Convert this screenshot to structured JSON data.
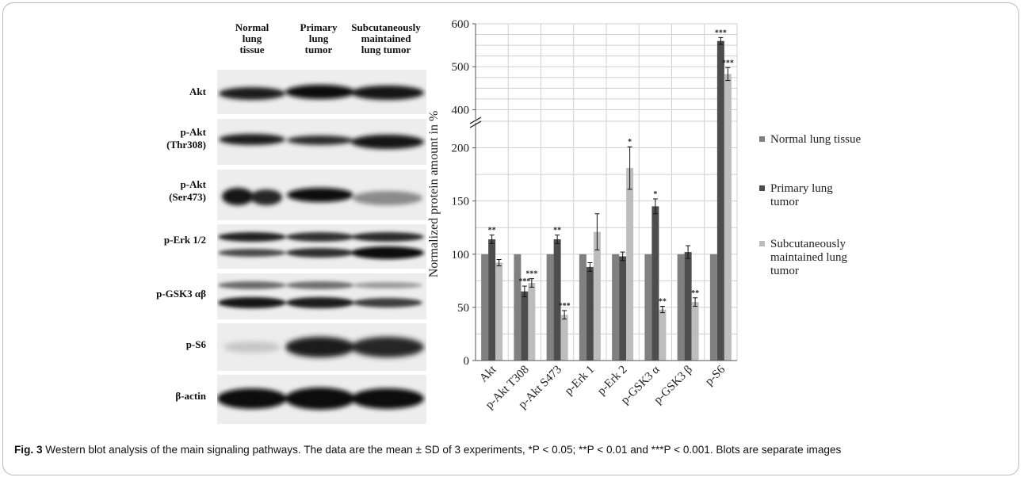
{
  "blot": {
    "columns": [
      "Normal lung tissue",
      "Primary lung tumor",
      "Subcutaneously maintained lung tumor"
    ],
    "column_lines": [
      [
        "Normal",
        "lung",
        "tissue"
      ],
      [
        "Primary",
        "lung",
        "tumor"
      ],
      [
        "Subcutaneously",
        "maintained",
        "lung tumor"
      ]
    ],
    "rows": [
      {
        "lines": [
          "Akt"
        ]
      },
      {
        "lines": [
          "p-Akt",
          "(Thr308)"
        ]
      },
      {
        "lines": [
          "p-Akt",
          "(Ser473)"
        ]
      },
      {
        "lines": [
          "p-Erk 1/2"
        ]
      },
      {
        "lines": [
          "p-GSK3 αβ"
        ]
      },
      {
        "lines": [
          "p-S6"
        ]
      },
      {
        "lines": [
          "β-actin"
        ]
      }
    ]
  },
  "chart_data": {
    "type": "bar",
    "ylabel": "Normalized protein amount in %",
    "categories": [
      "Akt",
      "p-Akt T308",
      "p-Akt S473",
      "p-Erk 1",
      "p-Erk 2",
      "p-GSK3 α",
      "p-GSK3 β",
      "p-S6"
    ],
    "y_ticks_lower": [
      0,
      50,
      100,
      150,
      200
    ],
    "y_ticks_upper": [
      400,
      500,
      600
    ],
    "axis_break": [
      225,
      375
    ],
    "ylim": [
      0,
      600
    ],
    "grid": true,
    "legend_position": "right",
    "series": [
      {
        "name": "Normal lung tissue",
        "legend_lines": [
          "Normal lung tissue"
        ],
        "color": "#808080",
        "values": [
          100,
          100,
          100,
          100,
          100,
          100,
          100,
          100
        ],
        "errors": [
          0,
          0,
          0,
          0,
          0,
          0,
          0,
          0
        ],
        "sig": [
          "",
          "",
          "",
          "",
          "",
          "",
          "",
          ""
        ]
      },
      {
        "name": "Primary lung tumor",
        "legend_lines": [
          "Primary lung",
          "tumor"
        ],
        "color": "#4d4d4d",
        "values": [
          114,
          65,
          114,
          88,
          98,
          145,
          102,
          560
        ],
        "errors": [
          4,
          5,
          4,
          4,
          4,
          7,
          6,
          8
        ],
        "sig": [
          "**",
          "***",
          "**",
          "",
          "",
          "*",
          "",
          "***"
        ]
      },
      {
        "name": "Subcutaneously maintained lung tumor",
        "legend_lines": [
          "Subcutaneously",
          "maintained lung",
          "tumor"
        ],
        "color": "#bdbdbd",
        "values": [
          92,
          73,
          43,
          121,
          181,
          48,
          55,
          483
        ],
        "errors": [
          3,
          4,
          4,
          17,
          20,
          3,
          4,
          15
        ],
        "sig": [
          "",
          "***",
          "***",
          "",
          "*",
          "**",
          "**",
          "***"
        ]
      }
    ]
  },
  "caption": {
    "label": "Fig. 3",
    "text": " Western blot analysis of the main signaling pathways. The data are the mean ± SD of 3 experiments, *P < 0.05; **P < 0.01 and ***P < 0.001. Blots are separate images"
  }
}
